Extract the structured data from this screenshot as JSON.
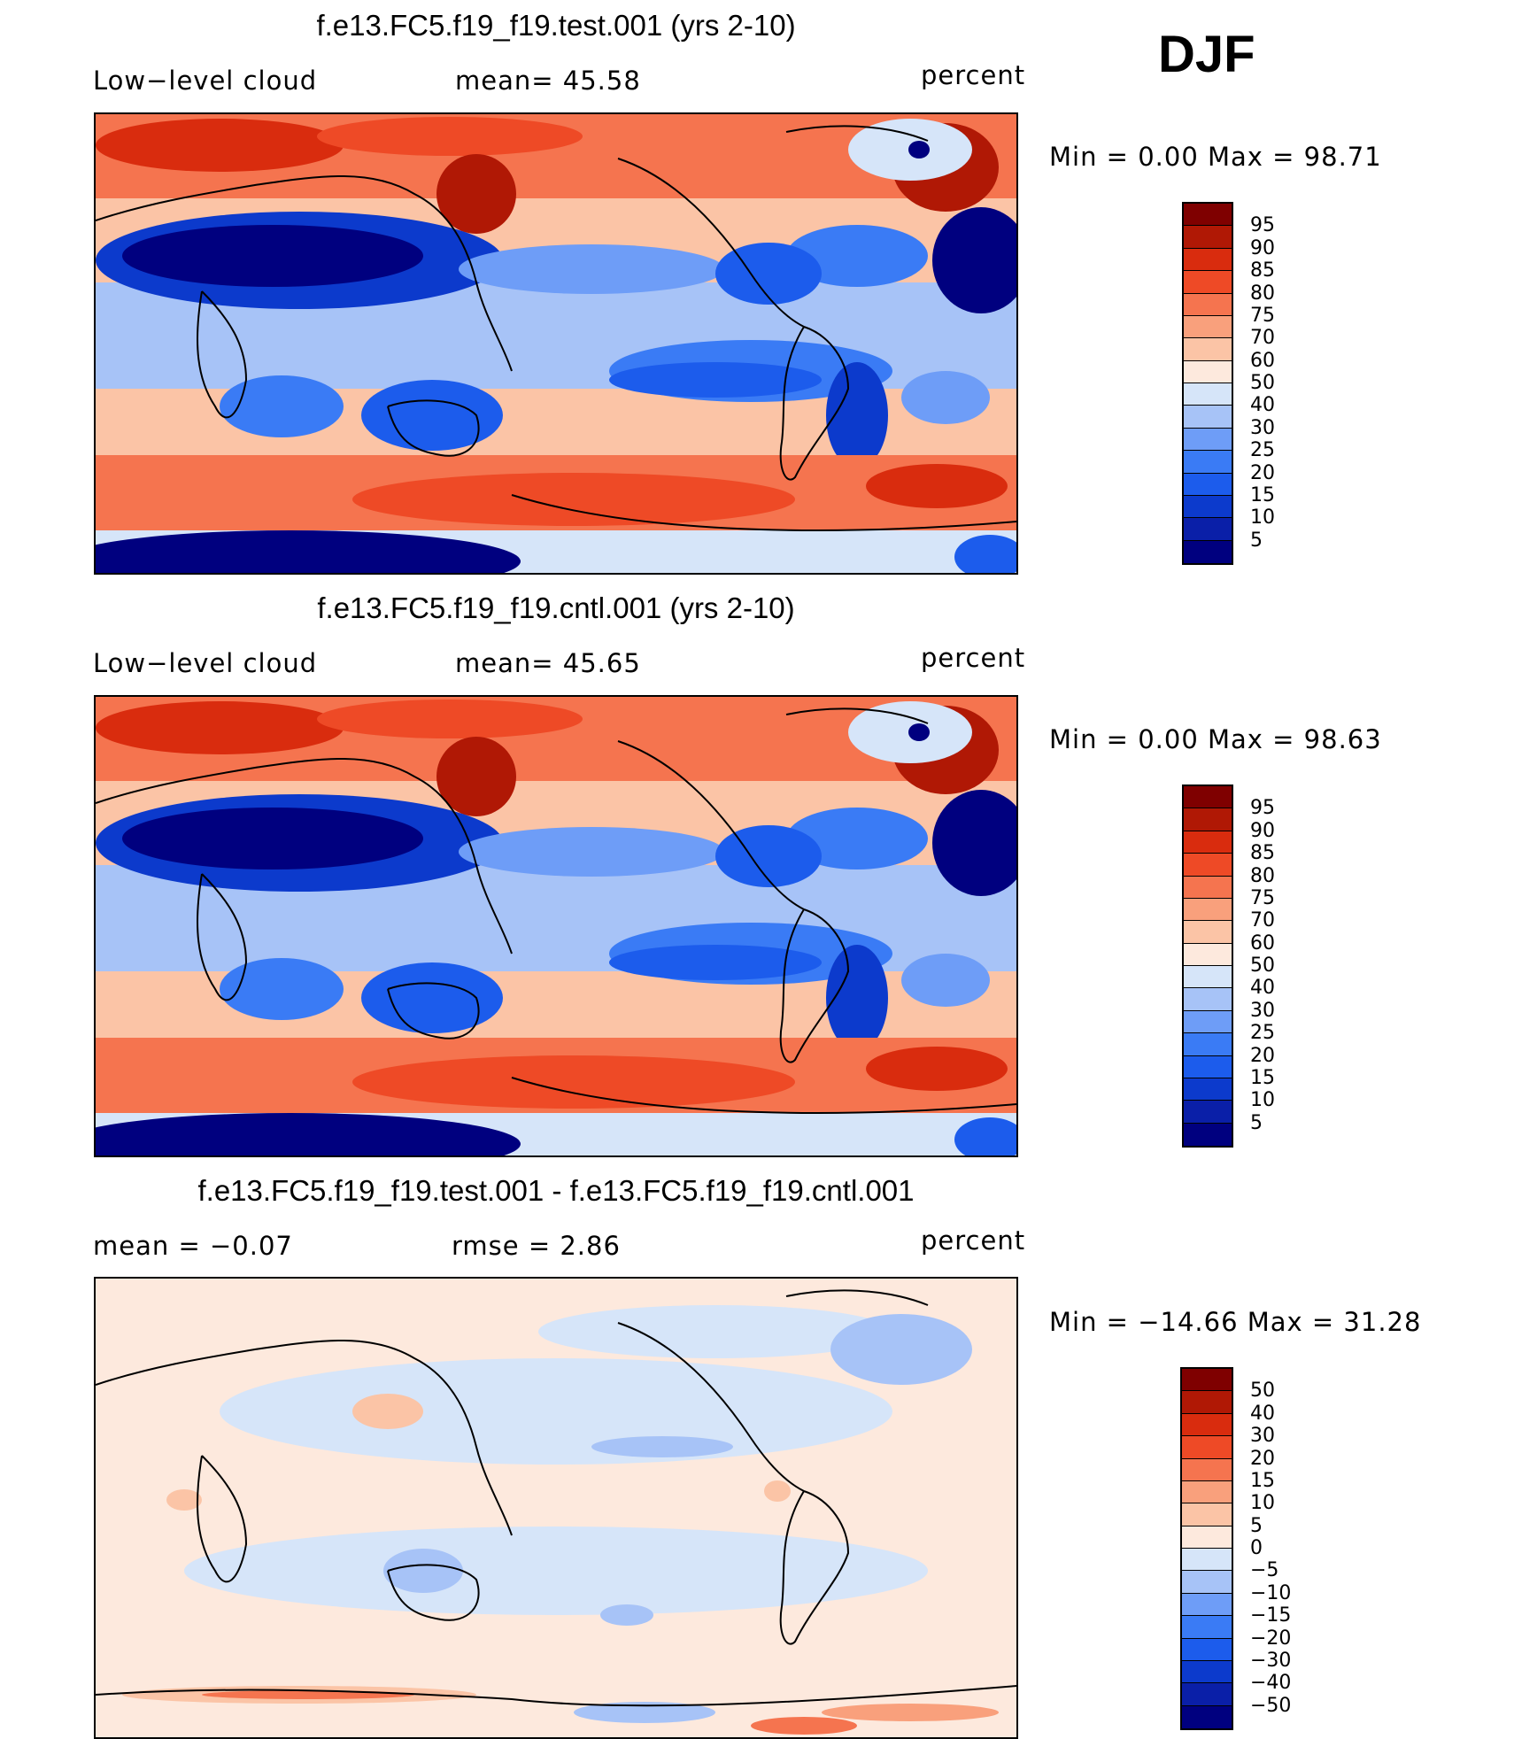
{
  "season": "DJF",
  "panels": [
    {
      "title": "f.e13.FC5.f19_f19.test.001 (yrs 2-10)",
      "left_label": "Low−level cloud",
      "mid_label": "mean=   45.58",
      "units": "percent",
      "minmax": "Min  =     0.00  Max  =    98.71"
    },
    {
      "title": "f.e13.FC5.f19_f19.cntl.001 (yrs 2-10)",
      "left_label": "Low−level cloud",
      "mid_label": "mean=   45.65",
      "units": "percent",
      "minmax": "Min  =     0.00  Max  =    98.63"
    },
    {
      "title": "f.e13.FC5.f19_f19.test.001 - f.e13.FC5.f19_f19.cntl.001",
      "left_label": "mean  =    −0.07",
      "mid_label": "rmse  =     2.86",
      "units": "percent",
      "minmax": "Min  = −14.66  Max  =    31.28"
    }
  ],
  "chart_data": [
    {
      "type": "heatmap",
      "title": "f.e13.FC5.f19_f19.test.001 (yrs 2-10)",
      "variable": "Low−level cloud",
      "units": "percent",
      "mean": 45.58,
      "min": 0.0,
      "max": 98.71,
      "contour_levels": [
        5,
        10,
        15,
        20,
        25,
        30,
        40,
        50,
        60,
        70,
        75,
        80,
        85,
        90,
        95
      ],
      "colors": [
        "#00007f",
        "#0a1fa8",
        "#0c3acc",
        "#1c5cec",
        "#3a7bf5",
        "#6e9df7",
        "#a7c3f7",
        "#d6e5f9",
        "#fde9dd",
        "#fbc4a6",
        "#f9a07c",
        "#f5744f",
        "#ee4a26",
        "#d92c0e",
        "#b01805",
        "#7f0000"
      ]
    },
    {
      "type": "heatmap",
      "title": "f.e13.FC5.f19_f19.cntl.001 (yrs 2-10)",
      "variable": "Low−level cloud",
      "units": "percent",
      "mean": 45.65,
      "min": 0.0,
      "max": 98.63,
      "contour_levels": [
        5,
        10,
        15,
        20,
        25,
        30,
        40,
        50,
        60,
        70,
        75,
        80,
        85,
        90,
        95
      ],
      "colors": [
        "#00007f",
        "#0a1fa8",
        "#0c3acc",
        "#1c5cec",
        "#3a7bf5",
        "#6e9df7",
        "#a7c3f7",
        "#d6e5f9",
        "#fde9dd",
        "#fbc4a6",
        "#f9a07c",
        "#f5744f",
        "#ee4a26",
        "#d92c0e",
        "#b01805",
        "#7f0000"
      ]
    },
    {
      "type": "heatmap",
      "title": "f.e13.FC5.f19_f19.test.001 - f.e13.FC5.f19_f19.cntl.001",
      "units": "percent",
      "mean": -0.07,
      "rmse": 2.86,
      "min": -14.66,
      "max": 31.28,
      "contour_levels": [
        -50,
        -40,
        -30,
        -20,
        -15,
        -10,
        -5,
        0,
        5,
        10,
        15,
        20,
        30,
        40,
        50
      ],
      "colors": [
        "#00007f",
        "#0a1fa8",
        "#0c3acc",
        "#1c5cec",
        "#3a7bf5",
        "#6e9df7",
        "#a7c3f7",
        "#d6e5f9",
        "#fde9dd",
        "#fbc4a6",
        "#f9a07c",
        "#f5744f",
        "#ee4a26",
        "#d92c0e",
        "#b01805",
        "#7f0000"
      ]
    }
  ],
  "colorbars": [
    {
      "labels": [
        "95",
        "90",
        "85",
        "80",
        "75",
        "70",
        "60",
        "50",
        "40",
        "30",
        "25",
        "20",
        "15",
        "10",
        "5"
      ]
    },
    {
      "labels": [
        "95",
        "90",
        "85",
        "80",
        "75",
        "70",
        "60",
        "50",
        "40",
        "30",
        "25",
        "20",
        "15",
        "10",
        "5"
      ]
    },
    {
      "labels": [
        "50",
        "40",
        "30",
        "20",
        "15",
        "10",
        "5",
        "0",
        "−5",
        "−10",
        "−15",
        "−20",
        "−30",
        "−40",
        "−50"
      ]
    }
  ]
}
